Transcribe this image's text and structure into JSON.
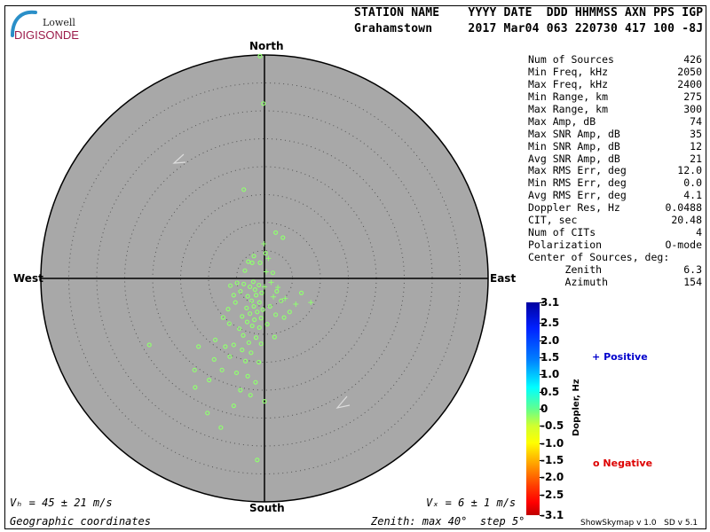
{
  "header": {
    "labels": "STATION NAME    YYYY DATE  DDD HHMMSS AXN PPS IGP",
    "values": "Grahamstown     2017 Mar04 063 220730 417 100 -8J"
  },
  "logo": {
    "line1": "Lowell",
    "line2": "DIGISONDE"
  },
  "directions": {
    "north": "North",
    "south": "South",
    "east": "East",
    "west": "West"
  },
  "stats": [
    {
      "label": "Num of Sources",
      "value": "426"
    },
    {
      "label": "Min Freq, kHz",
      "value": "2050"
    },
    {
      "label": "Max Freq, kHz",
      "value": "2400"
    },
    {
      "label": "Min Range, km",
      "value": "275"
    },
    {
      "label": "Max Range, km",
      "value": "300"
    },
    {
      "label": "Max Amp, dB",
      "value": "74"
    },
    {
      "label": "Max SNR Amp, dB",
      "value": "35"
    },
    {
      "label": "Min SNR Amp, dB",
      "value": "12"
    },
    {
      "label": "Avg SNR Amp, dB",
      "value": "21"
    },
    {
      "label": "Max RMS Err, deg",
      "value": "12.0"
    },
    {
      "label": "Min RMS Err, deg",
      "value": "0.0"
    },
    {
      "label": "Avg RMS Err, deg",
      "value": "4.1"
    },
    {
      "label": "Doppler Res, Hz",
      "value": "0.0488"
    },
    {
      "label": "CIT, sec",
      "value": "20.48"
    },
    {
      "label": "Num of CITs",
      "value": "4"
    },
    {
      "label": "Polarization",
      "value": "O-mode"
    },
    {
      "label": "Center of Sources, deg:",
      "value": ""
    },
    {
      "label": "      Zenith",
      "value": "6.3"
    },
    {
      "label": "      Azimuth",
      "value": "154"
    }
  ],
  "colorbar": {
    "title": "Doppler, Hz",
    "ticks": [
      "3.1",
      "2.5",
      "2.0",
      "1.5",
      "1.0",
      "0.5",
      "0",
      "-0.5",
      "-1.0",
      "-1.5",
      "-2.0",
      "-2.5",
      "-3.1"
    ],
    "tick_values": [
      3.1,
      2.5,
      2.0,
      1.5,
      1.0,
      0.5,
      0,
      -0.5,
      -1.0,
      -1.5,
      -2.0,
      -2.5,
      -3.1
    ]
  },
  "legend": {
    "positive_symbol": "+",
    "positive_label": "Positive",
    "positive_color": "#0000cc",
    "negative_symbol": "o",
    "negative_label": "Negative",
    "negative_color": "#dd0000"
  },
  "footer": {
    "vh": "Vₕ = 45 ± 21 m/s",
    "vz": "Vₓ = 6 ± 1 m/s",
    "coords": "Geographic coordinates",
    "zenith": "Zenith: max 40°  step 5°",
    "version": "ShowSkymap v 1.0   SD v 5.1"
  },
  "chart_data": {
    "type": "scatter",
    "projection": "polar skymap, zenith angle radial",
    "zenith_max_deg": 40,
    "zenith_step_deg": 5,
    "background": "#a8a8a8",
    "point_color": "#90ff70",
    "units": "x = east offset (deg), y = north offset (deg)",
    "negative_points": [
      [
        -0.8,
        39.8
      ],
      [
        -0.2,
        31.3
      ],
      [
        -3.7,
        15.9
      ],
      [
        -20.6,
        -11.9
      ],
      [
        -12.4,
        -19.5
      ],
      [
        -7.8,
        -26.7
      ],
      [
        -1.3,
        -32.5
      ],
      [
        -10.2,
        -24.1
      ],
      [
        3.3,
        7.3
      ],
      [
        2.0,
        8.2
      ],
      [
        -1.9,
        4.0
      ],
      [
        -2.2,
        2.8
      ],
      [
        -0.8,
        2.8
      ],
      [
        -3.5,
        1.4
      ],
      [
        -2.9,
        3.0
      ],
      [
        -4.9,
        -0.8
      ],
      [
        -6.1,
        -1.3
      ],
      [
        -4.3,
        -2.3
      ],
      [
        -2.0,
        -0.6
      ],
      [
        -1.0,
        -1.2
      ],
      [
        -1.7,
        -2.0
      ],
      [
        -2.6,
        -1.5
      ],
      [
        -0.5,
        -2.6
      ],
      [
        -1.5,
        -3.0
      ],
      [
        -3.0,
        -3.2
      ],
      [
        -2.3,
        -4.0
      ],
      [
        -0.9,
        -4.3
      ],
      [
        -1.9,
        -5.0
      ],
      [
        -3.2,
        -5.3
      ],
      [
        -0.3,
        -5.6
      ],
      [
        -1.3,
        -6.0
      ],
      [
        -2.6,
        -6.3
      ],
      [
        -4.0,
        -6.8
      ],
      [
        -0.6,
        -7.1
      ],
      [
        -1.8,
        -7.4
      ],
      [
        -3.1,
        -7.8
      ],
      [
        -2.2,
        -8.5
      ],
      [
        -0.9,
        -8.8
      ],
      [
        -4.5,
        -9.0
      ],
      [
        -6.3,
        -8.1
      ],
      [
        -7.4,
        -7.0
      ],
      [
        -5.2,
        -4.3
      ],
      [
        -6.5,
        -5.5
      ],
      [
        -3.8,
        -10.2
      ],
      [
        -1.5,
        -10.6
      ],
      [
        -2.8,
        -11.5
      ],
      [
        -0.6,
        -11.7
      ],
      [
        -5.5,
        -11.9
      ],
      [
        -7.0,
        -12.2
      ],
      [
        -8.8,
        -11.0
      ],
      [
        -4.0,
        -12.8
      ],
      [
        -2.4,
        -13.3
      ],
      [
        -6.2,
        -14.0
      ],
      [
        -3.4,
        -14.8
      ],
      [
        -1.0,
        -15.0
      ],
      [
        -9.0,
        -14.5
      ],
      [
        -7.6,
        -16.4
      ],
      [
        -5.0,
        -16.9
      ],
      [
        -3.0,
        -17.5
      ],
      [
        -1.6,
        -18.6
      ],
      [
        -11.8,
        -12.2
      ],
      [
        -12.5,
        -16.4
      ],
      [
        -9.9,
        -18.2
      ],
      [
        -4.3,
        -20.0
      ],
      [
        -2.5,
        -20.9
      ],
      [
        0.0,
        -22.0
      ],
      [
        -5.5,
        -22.8
      ],
      [
        2.2,
        -2.3
      ],
      [
        3.0,
        -4.0
      ],
      [
        2.0,
        -6.5
      ],
      [
        1.0,
        -5.0
      ],
      [
        0.5,
        -8.2
      ],
      [
        1.8,
        -10.5
      ],
      [
        3.5,
        -7.0
      ],
      [
        6.6,
        -2.6
      ],
      [
        4.5,
        -6.0
      ],
      [
        0.2,
        4.5
      ],
      [
        1.5,
        1.0
      ],
      [
        -5.5,
        -3.0
      ],
      [
        -3.7,
        -1.0
      ]
    ],
    "positive_points": [
      [
        -0.1,
        6.2
      ],
      [
        0.7,
        3.6
      ],
      [
        0.3,
        1.2
      ],
      [
        1.2,
        -0.7
      ],
      [
        1.6,
        -3.3
      ],
      [
        2.4,
        -1.6
      ],
      [
        3.7,
        -3.6
      ],
      [
        5.6,
        -4.6
      ],
      [
        8.3,
        -4.3
      ],
      [
        0.0,
        -1.5
      ]
    ]
  }
}
